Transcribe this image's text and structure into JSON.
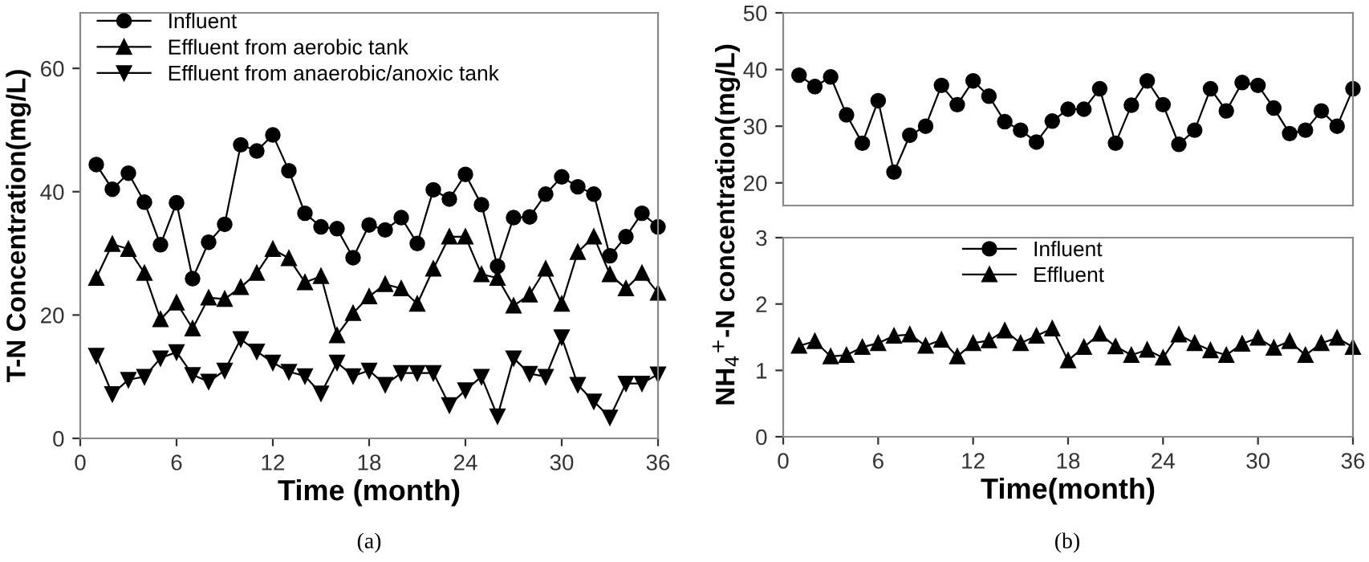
{
  "chart_data": [
    {
      "type": "line",
      "xlabel": "Time (month)",
      "ylabel": "T-N Concentration(mg/L)",
      "x": [
        1,
        2,
        3,
        4,
        5,
        6,
        7,
        8,
        9,
        10,
        11,
        12,
        13,
        14,
        15,
        16,
        17,
        18,
        19,
        20,
        21,
        22,
        23,
        24,
        25,
        26,
        27,
        28,
        29,
        30,
        31,
        32,
        33,
        34,
        35,
        36
      ],
      "series": [
        {
          "name": "Influent",
          "color": "#000000",
          "marker": "circle",
          "values": [
            44.4,
            40.4,
            43,
            38.3,
            31.4,
            38.2,
            25.9,
            31.8,
            34.7,
            47.6,
            46.6,
            49.2,
            43.4,
            36.5,
            34.3,
            34,
            29.3,
            34.6,
            33.8,
            35.8,
            31.6,
            40.3,
            38.8,
            42.8,
            37.9,
            27.9,
            35.8,
            35.9,
            39.6,
            42.4,
            40.8,
            39.6,
            29.6,
            32.7,
            36.5,
            34.3
          ]
        },
        {
          "name": "Effluent from aerobic tank",
          "color": "#000000",
          "marker": "triangle",
          "values": [
            26,
            31.5,
            30.7,
            26.8,
            19.3,
            22,
            17.8,
            22.8,
            22.6,
            24.5,
            26.8,
            30.7,
            29.2,
            25.3,
            26.3,
            16.7,
            20.3,
            23,
            25,
            24.3,
            21.8,
            27.5,
            32.7,
            32.7,
            26.6,
            26,
            21.5,
            23.3,
            27.5,
            21.8,
            30.2,
            32.7,
            26.6,
            24.3,
            26.8,
            23.6
          ]
        },
        {
          "name": "Effluent from anaerobic/anoxic tank",
          "color": "#000000",
          "marker": "triangle_down",
          "values": [
            13.4,
            7.2,
            9.5,
            10,
            13,
            14,
            10.3,
            9.2,
            11,
            16.1,
            14.1,
            12.3,
            10.8,
            10.1,
            7.3,
            12.3,
            10.1,
            11,
            8.7,
            10.6,
            10.6,
            10.6,
            5.4,
            7.8,
            10,
            3.6,
            13,
            10.5,
            10,
            16.4,
            8.7,
            6,
            3.4,
            8.9,
            8.9,
            10.4
          ]
        }
      ],
      "xlim": [
        0,
        36
      ],
      "xticks": [
        0,
        6,
        12,
        18,
        24,
        30,
        36
      ],
      "ylim": [
        0,
        69
      ],
      "yticks": [
        0,
        20,
        40,
        60
      ],
      "legend": "top left",
      "grid": false,
      "annotations": [
        "(a)"
      ]
    },
    {
      "type": "line",
      "ylabel": "NH$_{4}$$^{+}$-N concentration(mg/L)",
      "x": [
        1,
        2,
        3,
        4,
        5,
        6,
        7,
        8,
        9,
        10,
        11,
        12,
        13,
        14,
        15,
        16,
        17,
        18,
        19,
        20,
        21,
        22,
        23,
        24,
        25,
        26,
        27,
        28,
        29,
        30,
        31,
        32,
        33,
        34,
        35,
        36
      ],
      "series": [
        {
          "name": "Influent",
          "color": "#000000",
          "marker": "circle",
          "values": [
            39,
            37,
            38.7,
            32,
            27,
            34.5,
            21.9,
            28.4,
            30,
            37.2,
            33.8,
            38,
            35.3,
            30.8,
            29.3,
            27.2,
            30.9,
            33,
            33,
            36.6,
            27,
            33.7,
            38,
            33.8,
            26.8,
            29.3,
            36.6,
            32.7,
            37.7,
            37.2,
            33.2,
            28.7,
            29.3,
            32.7,
            30,
            36.6
          ]
        }
      ],
      "xlim": [
        0,
        36
      ],
      "ylim": [
        16,
        50
      ],
      "yticks": [
        20,
        30,
        40,
        50
      ],
      "tick_labels": "y",
      "legend": "bottom",
      "grid": false
    },
    {
      "type": "line",
      "xlabel": "Time(month)",
      "x": [
        1,
        2,
        3,
        4,
        5,
        6,
        7,
        8,
        9,
        10,
        11,
        12,
        13,
        14,
        15,
        16,
        17,
        18,
        19,
        20,
        21,
        22,
        23,
        24,
        25,
        26,
        27,
        28,
        29,
        30,
        31,
        32,
        33,
        34,
        35,
        36
      ],
      "series": [
        {
          "name": "Effluent",
          "color": "#000000",
          "marker": "triangle",
          "values": [
            1.37,
            1.44,
            1.21,
            1.23,
            1.35,
            1.41,
            1.52,
            1.54,
            1.37,
            1.46,
            1.21,
            1.41,
            1.45,
            1.6,
            1.41,
            1.52,
            1.63,
            1.15,
            1.35,
            1.55,
            1.36,
            1.23,
            1.31,
            1.19,
            1.54,
            1.41,
            1.3,
            1.23,
            1.4,
            1.49,
            1.34,
            1.44,
            1.23,
            1.41,
            1.49,
            1.35
          ]
        }
      ],
      "xlim": [
        0,
        36
      ],
      "xticks": [
        0,
        6,
        12,
        18,
        24,
        30,
        36
      ],
      "ylim": [
        0,
        3
      ],
      "yticks": [
        0,
        1,
        2,
        3
      ],
      "legend": "top",
      "grid": false,
      "annotations": [
        "(b)"
      ]
    }
  ]
}
